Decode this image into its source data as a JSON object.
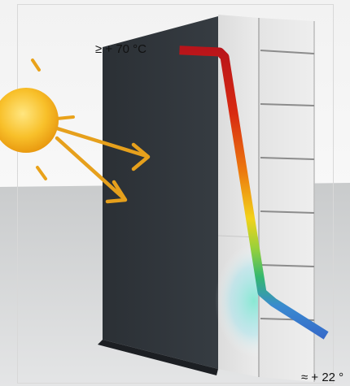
{
  "labels": {
    "outer_temperature": "≥ + 70 °C",
    "inner_temperature": "≈ + 22 °"
  },
  "colors": {
    "hot": "#c51919",
    "warm": "#e8860c",
    "mid": "#f1e51c",
    "cool": "#2fb86a",
    "cold": "#2f6fcf",
    "cladding": "#2e3338",
    "sun": "#f6b21a",
    "ray": "#e9a21a",
    "sky": "#f7f7f7",
    "ground": "#c9cbcc"
  },
  "icons": {
    "sun": "sun-icon",
    "ray": "arrow-icon"
  }
}
